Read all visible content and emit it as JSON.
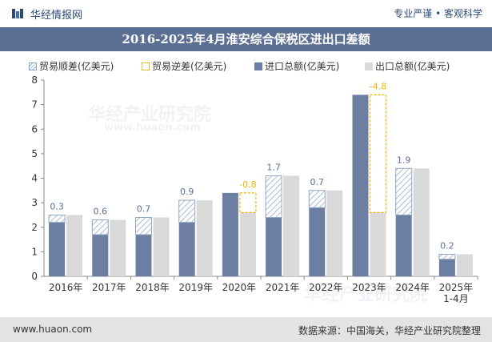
{
  "header": {
    "brand": "华经情报网",
    "slogan": "专业严谨 • 客观科学"
  },
  "footer": {
    "website": "www.huaon.com",
    "source": "数据来源：中国海关，华经产业研究院整理"
  },
  "watermark": {
    "text": "华经产业研究院",
    "url": "www.huaon.com"
  },
  "colors": {
    "header_bar": "#5b6f95",
    "import": "#6d7ea3",
    "export": "#d9d9d9",
    "surplus_hatch": "#9fb3cc",
    "deficit_outline": "#f2b400",
    "label_surplus": "#5b6f95",
    "label_deficit": "#f2b400"
  },
  "chart_data": {
    "type": "bar",
    "title": "2016-2025年4月淮安综合保税区进出口差额",
    "categories": [
      "2016年",
      "2017年",
      "2018年",
      "2019年",
      "2020年",
      "2021年",
      "2022年",
      "2023年",
      "2024年",
      "2025年\n1-4月"
    ],
    "ylim": [
      0,
      8
    ],
    "yticks": [
      0,
      1,
      2,
      3,
      4,
      5,
      6,
      7,
      8
    ],
    "grid": false,
    "legend_position": "top",
    "legend": [
      "贸易顺差(亿美元)",
      "贸易逆差(亿美元)",
      "进口总额(亿美元)",
      "出口总额(亿美元)"
    ],
    "series": [
      {
        "name": "进口总额(亿美元)",
        "values": [
          2.2,
          1.7,
          1.7,
          2.2,
          3.4,
          2.4,
          2.8,
          7.4,
          2.5,
          0.7
        ]
      },
      {
        "name": "出口总额(亿美元)",
        "values": [
          2.5,
          2.3,
          2.4,
          3.1,
          2.6,
          4.1,
          3.5,
          2.6,
          4.4,
          0.9
        ]
      }
    ],
    "balance": {
      "values": [
        0.3,
        0.6,
        0.7,
        0.9,
        -0.8,
        1.7,
        0.7,
        -4.8,
        1.9,
        0.2
      ],
      "labels": [
        "0.3",
        "0.6",
        "0.7",
        "0.9",
        "-0.8",
        "1.7",
        "0.7",
        "-4.8",
        "1.9",
        "0.2"
      ]
    }
  }
}
